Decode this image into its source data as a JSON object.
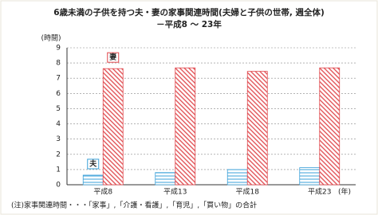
{
  "chart_data": {
    "type": "bar",
    "title": "6歳未満の子供を持つ夫・妻の家事関連時間(夫婦と子供の世帯, 週全体)",
    "subtitle": "－平成8 ～ 23年",
    "y_label": "(時間)",
    "x_label": "(年)",
    "note": "(注)家事関連時間・・・「家事」,「介護・看護」,「育児」,「買い物」の合計",
    "categories": [
      "平成8",
      "平成13",
      "平成18",
      "平成23"
    ],
    "series": [
      {
        "name": "夫",
        "color": "#3aa0d8",
        "values": [
          0.63,
          0.8,
          1.0,
          1.12
        ]
      },
      {
        "name": "妻",
        "color": "#e0474c",
        "values": [
          7.63,
          7.68,
          7.45,
          7.68
        ]
      }
    ],
    "ylim": [
      0,
      9
    ],
    "yticks": [
      0,
      1,
      2,
      3,
      4,
      5,
      6,
      7,
      8,
      9
    ],
    "grid": true
  }
}
